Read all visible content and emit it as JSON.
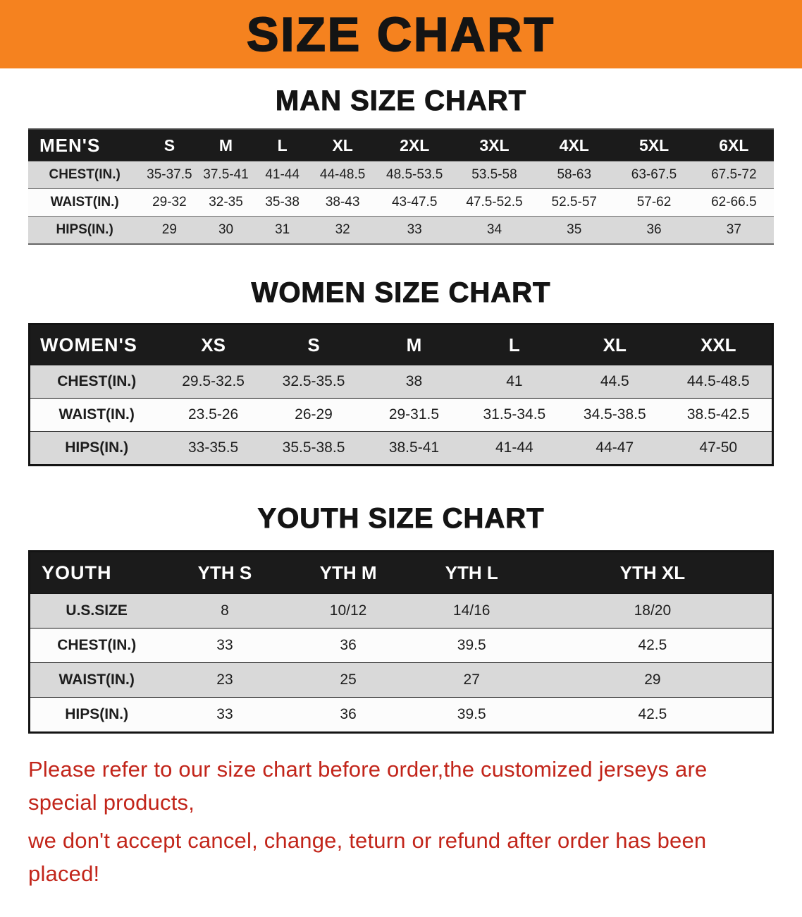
{
  "banner": {
    "title": "SIZE CHART",
    "bg_color": "#F5821F"
  },
  "man": {
    "heading": "MAN SIZE CHART",
    "header": [
      "MEN'S",
      "S",
      "M",
      "L",
      "XL",
      "2XL",
      "3XL",
      "4XL",
      "5XL",
      "6XL"
    ],
    "rows": [
      [
        "CHEST(IN.)",
        "35-37.5",
        "37.5-41",
        "41-44",
        "44-48.5",
        "48.5-53.5",
        "53.5-58",
        "58-63",
        "63-67.5",
        "67.5-72"
      ],
      [
        "WAIST(IN.)",
        "29-32",
        "32-35",
        "35-38",
        "38-43",
        "43-47.5",
        "47.5-52.5",
        "52.5-57",
        "57-62",
        "62-66.5"
      ],
      [
        "HIPS(IN.)",
        "29",
        "30",
        "31",
        "32",
        "33",
        "34",
        "35",
        "36",
        "37"
      ]
    ]
  },
  "women": {
    "heading": "WOMEN SIZE CHART",
    "header": [
      "WOMEN'S",
      "XS",
      "S",
      "M",
      "L",
      "XL",
      "XXL"
    ],
    "rows": [
      [
        "CHEST(IN.)",
        "29.5-32.5",
        "32.5-35.5",
        "38",
        "41",
        "44.5",
        "44.5-48.5"
      ],
      [
        "WAIST(IN.)",
        "23.5-26",
        "26-29",
        "29-31.5",
        "31.5-34.5",
        "34.5-38.5",
        "38.5-42.5"
      ],
      [
        "HIPS(IN.)",
        "33-35.5",
        "35.5-38.5",
        "38.5-41",
        "41-44",
        "44-47",
        "47-50"
      ]
    ]
  },
  "youth": {
    "heading": "YOUTH SIZE CHART",
    "header": [
      "YOUTH",
      "YTH S",
      "YTH M",
      "YTH L",
      "YTH XL"
    ],
    "rows": [
      [
        "U.S.SIZE",
        "8",
        "10/12",
        "14/16",
        "18/20"
      ],
      [
        "CHEST(IN.)",
        "33",
        "36",
        "39.5",
        "42.5"
      ],
      [
        "WAIST(IN.)",
        "23",
        "25",
        "27",
        "29"
      ],
      [
        "HIPS(IN.)",
        "33",
        "36",
        "39.5",
        "42.5"
      ]
    ]
  },
  "notice": {
    "line1": "Please refer to our size chart before order,the customized jerseys are special products,",
    "line2": "we don't accept cancel, change, teturn or refund after order has been placed!",
    "color": "#C2251A"
  }
}
